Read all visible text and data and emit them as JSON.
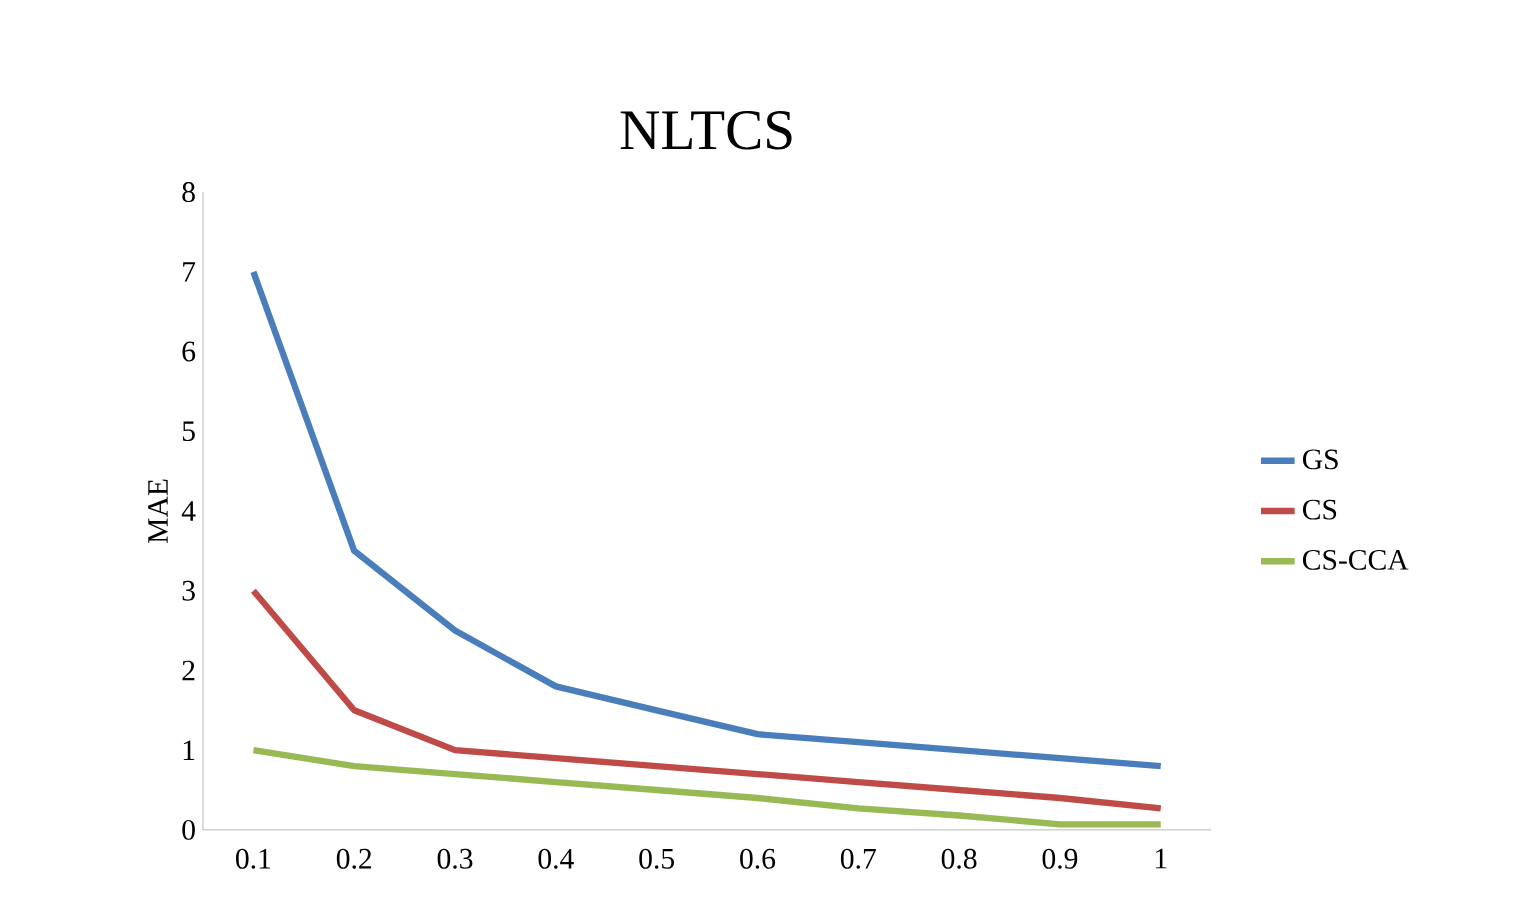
{
  "chart_data": {
    "type": "line",
    "title": "NLTCS",
    "ylabel": "MAE",
    "categories": [
      "0.1",
      "0.2",
      "0.3",
      "0.4",
      "0.5",
      "0.6",
      "0.7",
      "0.8",
      "0.9",
      "1"
    ],
    "series": [
      {
        "name": "GS",
        "color": "#4a7ebb",
        "values": [
          7,
          3.5,
          2.5,
          1.8,
          1.5,
          1.2,
          1.1,
          1.0,
          0.9,
          0.8
        ]
      },
      {
        "name": "CS",
        "color": "#be4b48",
        "values": [
          3,
          1.5,
          1.0,
          0.9,
          0.8,
          0.7,
          0.6,
          0.5,
          0.4,
          0.27
        ]
      },
      {
        "name": "CS-CCA",
        "color": "#98b954",
        "values": [
          1.0,
          0.8,
          0.7,
          0.6,
          0.5,
          0.4,
          0.27,
          0.18,
          0.07,
          0.07
        ]
      }
    ],
    "ylim": [
      0,
      8
    ],
    "yticks": [
      0,
      1,
      2,
      3,
      4,
      5,
      6,
      7,
      8
    ],
    "grid": false,
    "legend": "right",
    "marker": "none",
    "line_style": "solid"
  }
}
